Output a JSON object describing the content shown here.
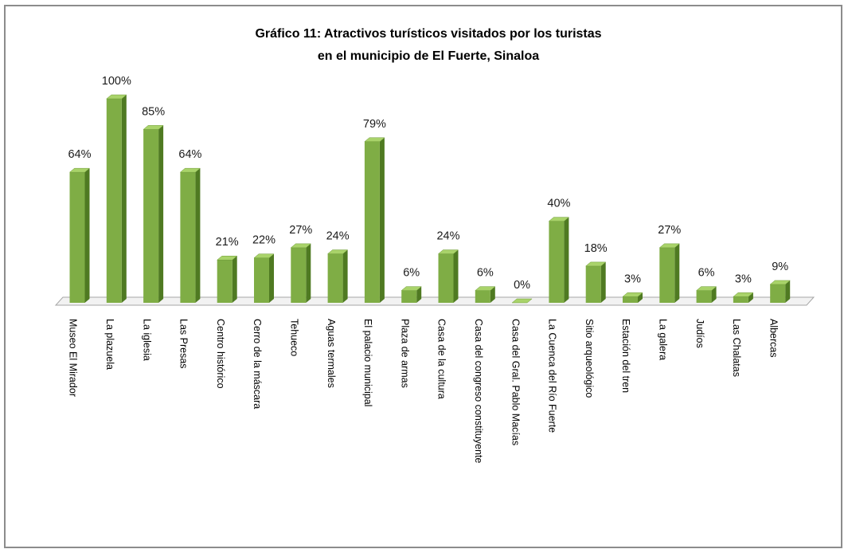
{
  "chart_data": {
    "type": "bar",
    "title_lines": [
      "Gráfico 11: Atractivos turísticos visitados por los turistas",
      "en el municipio de El Fuerte, Sinaloa"
    ],
    "xlabel": "",
    "ylabel": "",
    "ylim": [
      0,
      100
    ],
    "grid": false,
    "legend": "none",
    "three_d": true,
    "bar_color": "#7fad45",
    "bar_side_color": "#4f7a22",
    "bar_top_color": "#a9d36a",
    "categories": [
      "Museo El Mirador",
      "La plazuela",
      "La iglesia",
      "Las Presas",
      "Centro histórico",
      "Cerro de la máscara",
      "Tehueco",
      "Aguas termales",
      "El palacio municipal",
      "Plaza de armas",
      "Casa de la cultura",
      "Casa del congreso constituyente",
      "Casa del Gral. Pablo Macías",
      "La Cuenca del Río Fuerte",
      "Sitio arqueológico",
      "Estación del tren",
      "La galera",
      "Judíos",
      "Las Chalatas",
      "Albercas"
    ],
    "values": [
      64,
      100,
      85,
      64,
      21,
      22,
      27,
      24,
      79,
      6,
      24,
      6,
      0,
      40,
      18,
      3,
      27,
      6,
      3,
      9
    ],
    "value_labels": [
      "64%",
      "100%",
      "85%",
      "64%",
      "21%",
      "22%",
      "27%",
      "24%",
      "79%",
      "6%",
      "24%",
      "6%",
      "0%",
      "40%",
      "18%",
      "3%",
      "27%",
      "6%",
      "3%",
      "9%"
    ]
  }
}
